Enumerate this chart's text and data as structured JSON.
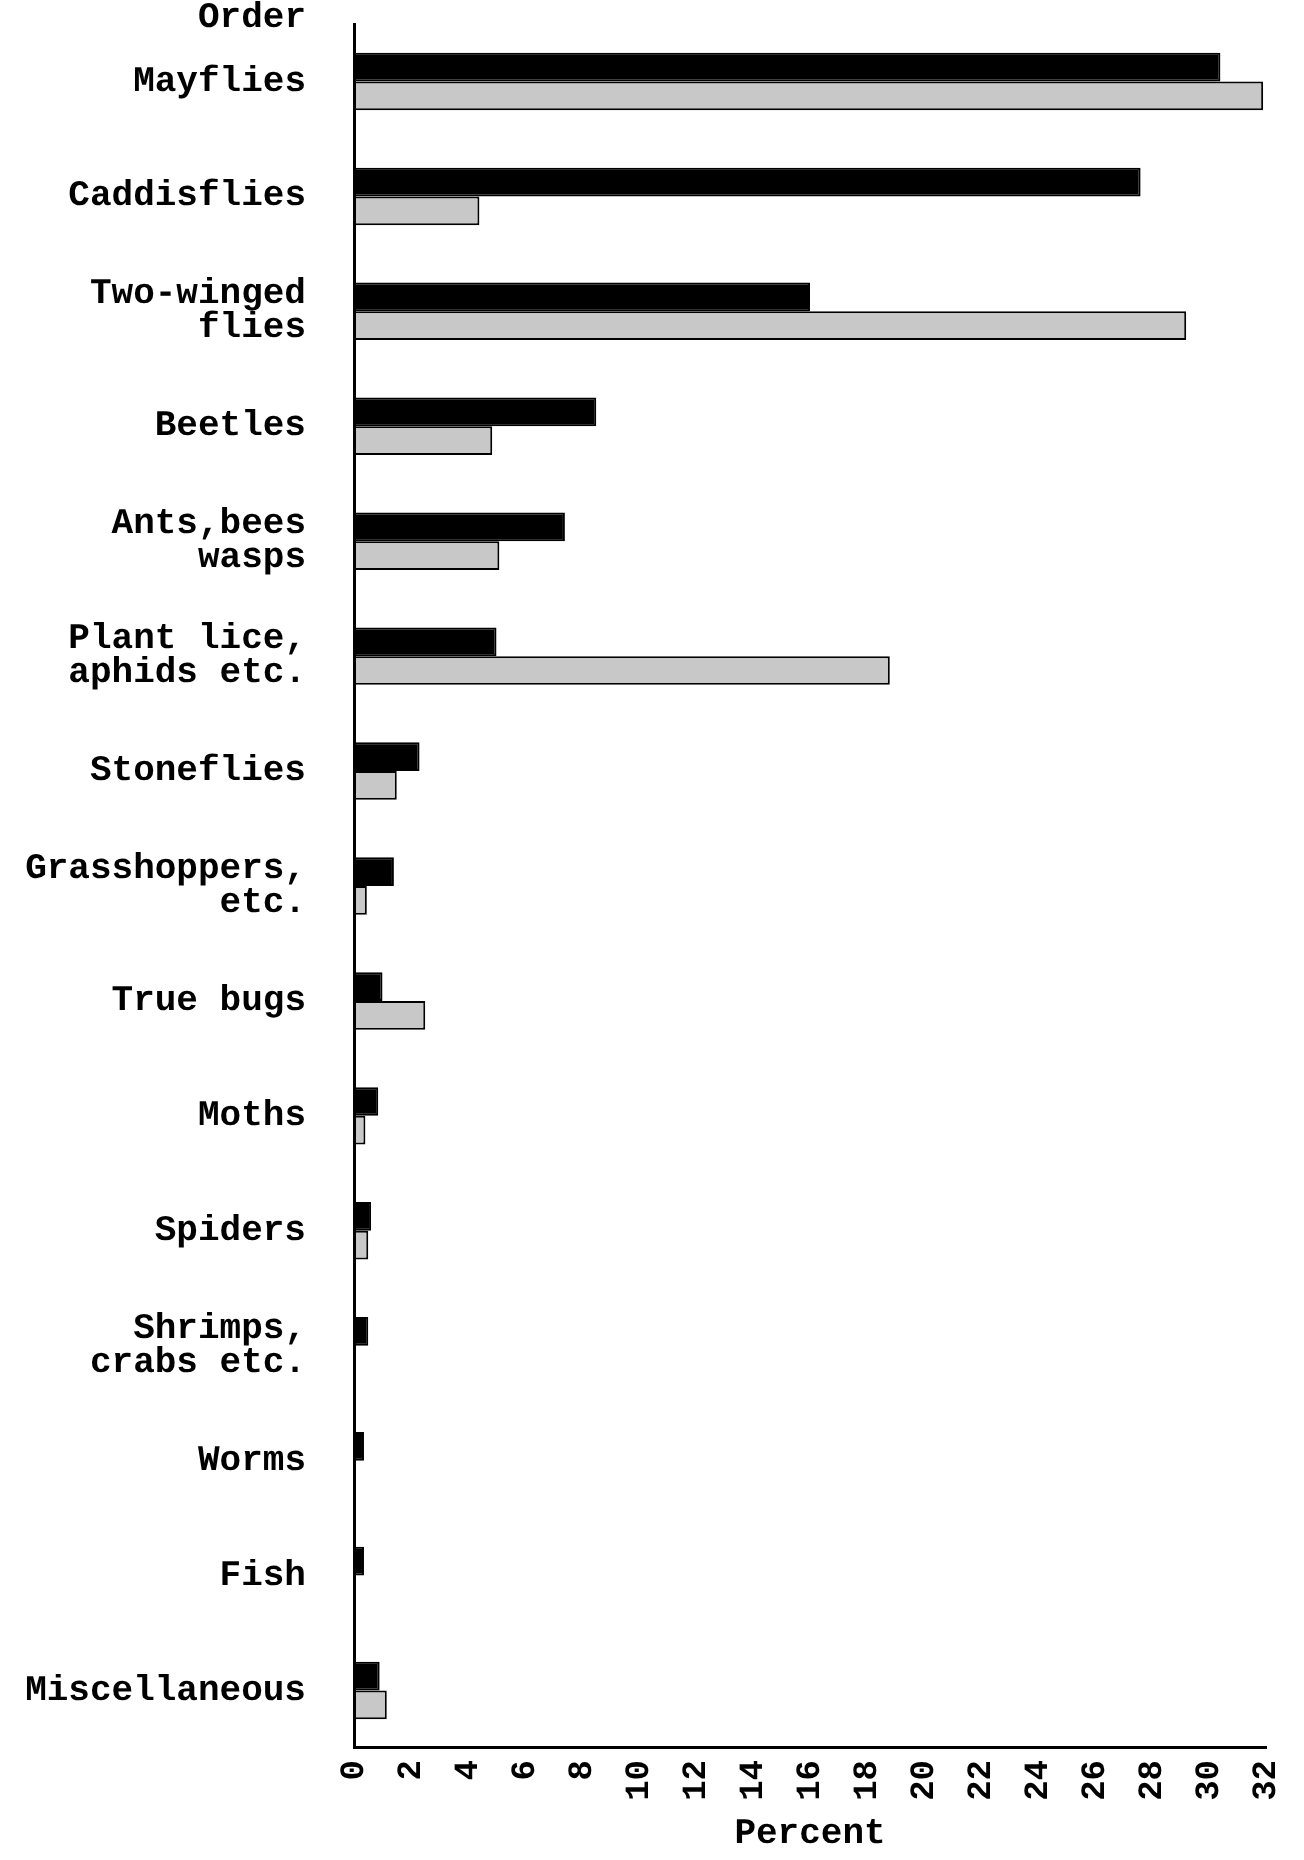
{
  "chart_data": {
    "type": "bar",
    "orientation": "horizontal",
    "xlabel": "Percent",
    "ylabel": "Order",
    "categories": [
      "Mayflies",
      "Caddisflies",
      "Two-winged flies",
      "Beetles",
      "Ants,bees wasps",
      "Plant lice, aphids etc.",
      "Stoneflies",
      "Grasshoppers, etc.",
      "True bugs",
      "Moths",
      "Spiders",
      "Shrimps, crabs etc.",
      "Worms",
      "Fish",
      "Miscellaneous"
    ],
    "series": [
      {
        "color": "#000000",
        "values": [
          30.4,
          27.6,
          16.0,
          8.5,
          7.4,
          5.0,
          2.3,
          1.4,
          1.0,
          0.85,
          0.6,
          0.5,
          0.35,
          0.35,
          0.9
        ]
      },
      {
        "color": "#c8c8c8",
        "values": [
          31.9,
          4.4,
          29.2,
          4.85,
          5.1,
          18.8,
          1.5,
          0.45,
          2.5,
          0.4,
          0.5,
          null,
          null,
          null,
          1.15
        ]
      }
    ],
    "xlim": [
      0,
      32
    ],
    "xticks": [
      0,
      2,
      4,
      6,
      8,
      10,
      12,
      14,
      16,
      18,
      20,
      22,
      24,
      26,
      28,
      30,
      32
    ],
    "grid": false,
    "legend": false
  }
}
